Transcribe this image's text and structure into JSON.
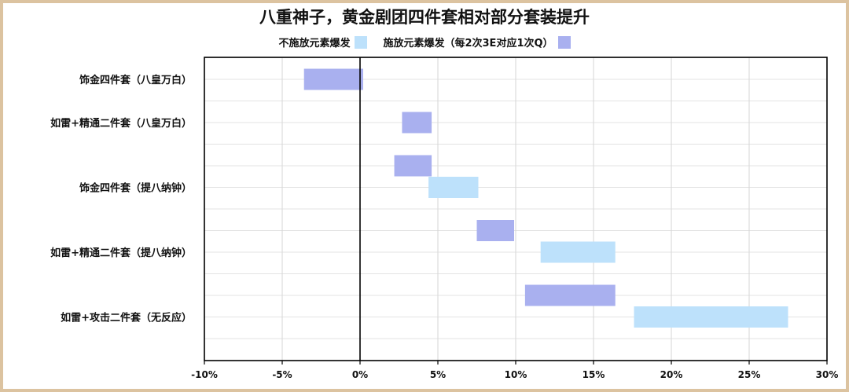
{
  "chart_data": {
    "type": "bar",
    "orientation": "horizontal-floating",
    "title": "八重神子，黄金剧团四件套相对部分套装提升",
    "xlabel": "",
    "ylabel": "",
    "xlim": [
      -0.1,
      0.3
    ],
    "xticks": [
      -0.1,
      -0.05,
      0,
      0.05,
      0.1,
      0.15,
      0.2,
      0.25,
      0.3
    ],
    "xtick_labels": [
      "-10%",
      "-5%",
      "0%",
      "5%",
      "10%",
      "15%",
      "20%",
      "25%",
      "30%"
    ],
    "grid": true,
    "legend_position": "top-center",
    "series": [
      {
        "name": "不施放元素爆发",
        "color": "#bde1fb"
      },
      {
        "name": "施放元素爆发（每2次3E对应1次Q）",
        "color": "#a9b0ef"
      }
    ],
    "categories": [
      "饰金四件套（八皇万白）",
      "如雷+精通二件套（八皇万白）",
      "饰金四件套（提八纳钟）",
      "如雷+精通二件套（提八纳钟）",
      "如雷+攻击二件套（无反应）"
    ],
    "bars": [
      {
        "category": 0,
        "series": 1,
        "start": -0.036,
        "end": 0.002
      },
      {
        "category": 1,
        "series": 1,
        "start": 0.027,
        "end": 0.046
      },
      {
        "category": 2,
        "series": 1,
        "start": 0.022,
        "end": 0.046
      },
      {
        "category": 2,
        "series": 0,
        "start": 0.044,
        "end": 0.076
      },
      {
        "category": 3,
        "series": 1,
        "start": 0.075,
        "end": 0.099
      },
      {
        "category": 3,
        "series": 0,
        "start": 0.116,
        "end": 0.164
      },
      {
        "category": 4,
        "series": 1,
        "start": 0.106,
        "end": 0.164
      },
      {
        "category": 4,
        "series": 0,
        "start": 0.176,
        "end": 0.275
      }
    ]
  }
}
